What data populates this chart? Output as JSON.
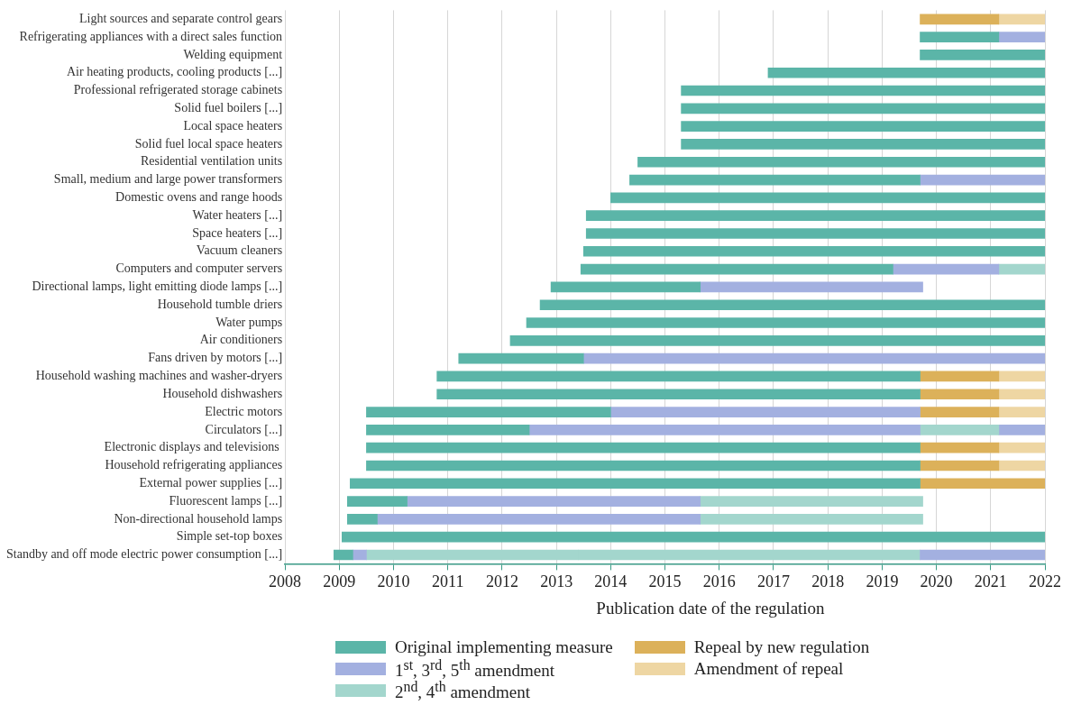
{
  "chart_data": {
    "type": "bar",
    "orientation": "horizontal",
    "xlabel": "Publication date of the regulation",
    "categories": [
      "Light sources and separate control gears",
      "Refrigerating appliances with a direct sales function",
      "Welding equipment",
      "Air heating products, cooling products [...]",
      "Professional refrigerated storage cabinets",
      "Solid fuel boilers [...]",
      "Local space heaters",
      "Solid fuel local space heaters",
      "Residential ventilation units",
      "Small, medium and large power transformers",
      "Domestic ovens and range hoods",
      "Water heaters [...]",
      "Space heaters [...]",
      "Vacuum cleaners",
      "Computers and computer servers",
      "Directional lamps, light emitting diode lamps [...]",
      "Household tumble driers",
      "Water pumps",
      "Air conditioners",
      "Fans driven by motors [...]",
      "Household washing machines and washer-dryers",
      "Household dishwashers",
      "Electric motors",
      "Circulators [...]",
      "Electronic displays and televisions ",
      "Household refrigerating appliances",
      "External power supplies [...]",
      "Fluorescent lamps [...]",
      "Non-directional household lamps",
      "Simple set-top boxes",
      "Standby and off mode electric power consumption [...]"
    ],
    "series": [
      {
        "name": "Original implementing measure",
        "color": "#5bb5a8",
        "base": [
          null,
          2019.7,
          2019.7,
          2016.9,
          2015.3,
          2015.3,
          2015.3,
          2015.3,
          2014.5,
          2014.35,
          2014,
          2013.55,
          2013.55,
          2013.5,
          2013.45,
          2012.9,
          2012.7,
          2012.45,
          2012.15,
          2011.2,
          2010.8,
          2010.8,
          2009.5,
          2009.5,
          2009.5,
          2009.5,
          2009.2,
          2009.15,
          2009.15,
          2009.05,
          2008.9
        ],
        "values": [
          null,
          1.45,
          2.3,
          5.1,
          6.7,
          6.7,
          6.7,
          6.7,
          7.5,
          5.35,
          8,
          8.45,
          8.45,
          8.5,
          5.75,
          2.75,
          9.3,
          9.55,
          9.85,
          2.3,
          8.9,
          8.9,
          4.5,
          3,
          10.2,
          10.2,
          10.5,
          1.1,
          0.55,
          12.95,
          0.35
        ]
      },
      {
        "name": "1$^{st}$, 3$^{rd}$, 5$^{th}$ amendment",
        "color": "#a3b0e0",
        "base": [
          null,
          2021.15,
          null,
          null,
          null,
          null,
          null,
          null,
          null,
          2019.7,
          null,
          null,
          null,
          null,
          2019.2,
          2015.65,
          null,
          null,
          null,
          2013.5,
          null,
          null,
          2014,
          2012.5,
          null,
          null,
          null,
          2010.25,
          2009.7,
          null,
          2009.25
        ],
        "values": [
          null,
          0.85,
          null,
          null,
          null,
          null,
          null,
          null,
          null,
          2.3,
          null,
          null,
          null,
          null,
          1.95,
          4.1,
          null,
          null,
          null,
          8.5,
          null,
          null,
          5.7,
          7.2,
          null,
          null,
          null,
          5.4,
          5.95,
          null,
          0.25
        ]
      },
      {
        "name": "2$^{nd}$, 4$^{th}$ amendment",
        "color": "#a3d6cd",
        "base": [
          null,
          null,
          null,
          null,
          null,
          null,
          null,
          null,
          null,
          null,
          null,
          null,
          null,
          null,
          2021.15,
          null,
          null,
          null,
          null,
          null,
          null,
          null,
          null,
          2019.7,
          null,
          null,
          null,
          2015.65,
          2015.65,
          null,
          2009.5
        ],
        "values": [
          null,
          null,
          null,
          null,
          null,
          null,
          null,
          null,
          null,
          null,
          null,
          null,
          null,
          null,
          0.85,
          null,
          null,
          null,
          null,
          null,
          null,
          null,
          null,
          1.45,
          null,
          null,
          null,
          4.1,
          4.1,
          null,
          3.9
        ]
      },
      {
        "name": "Repeal by new regulation",
        "color": "#dcb15a",
        "base": [
          2019.7,
          null,
          null,
          null,
          null,
          null,
          null,
          null,
          null,
          null,
          null,
          null,
          null,
          null,
          null,
          null,
          null,
          null,
          null,
          null,
          2019.7,
          2019.7,
          2019.7,
          null,
          2019.7,
          2019.7,
          2019.7,
          null,
          null,
          null,
          null
        ],
        "values": [
          1.45,
          null,
          null,
          null,
          null,
          null,
          null,
          null,
          null,
          null,
          null,
          null,
          null,
          null,
          null,
          null,
          null,
          null,
          null,
          null,
          1.45,
          1.45,
          1.45,
          null,
          1.45,
          1.45,
          2.3,
          null,
          null,
          null,
          null
        ]
      },
      {
        "name": "Amendment of repeal",
        "color": "#eed6a3",
        "base": [
          2021.15,
          null,
          null,
          null,
          null,
          null,
          null,
          null,
          null,
          null,
          null,
          null,
          null,
          null,
          null,
          null,
          null,
          null,
          null,
          null,
          2021.15,
          2021.15,
          2021.15,
          null,
          2021.15,
          2021.15,
          null,
          null,
          null,
          null,
          null
        ],
        "values": [
          0.85,
          null,
          null,
          null,
          null,
          null,
          null,
          null,
          null,
          null,
          null,
          null,
          null,
          null,
          null,
          null,
          null,
          null,
          null,
          null,
          0.85,
          0.85,
          0.85,
          null,
          0.85,
          0.85,
          null,
          null,
          null,
          null,
          null
        ]
      },
      {
        "color": "#a3b0e0",
        "base": [
          null,
          null,
          null,
          null,
          null,
          null,
          null,
          null,
          null,
          null,
          null,
          null,
          null,
          null,
          null,
          null,
          null,
          null,
          null,
          null,
          null,
          null,
          null,
          2021.15,
          null,
          null,
          null,
          null,
          null,
          null,
          2019.7
        ],
        "values": [
          null,
          null,
          null,
          null,
          null,
          null,
          null,
          null,
          null,
          null,
          null,
          null,
          null,
          null,
          null,
          null,
          null,
          null,
          null,
          null,
          null,
          null,
          null,
          0.85,
          null,
          null,
          null,
          null,
          null,
          null,
          2.3
        ]
      },
      {
        "color": "#a3d6cd",
        "base": [
          null,
          null,
          null,
          null,
          null,
          null,
          null,
          null,
          null,
          null,
          null,
          null,
          null,
          null,
          null,
          null,
          null,
          null,
          null,
          null,
          null,
          null,
          null,
          null,
          null,
          null,
          null,
          null,
          null,
          null,
          2013.4
        ],
        "values": [
          null,
          null,
          null,
          null,
          null,
          null,
          null,
          null,
          null,
          null,
          null,
          null,
          null,
          null,
          null,
          null,
          null,
          null,
          null,
          null,
          null,
          null,
          null,
          null,
          null,
          null,
          null,
          null,
          null,
          null,
          6.3
        ]
      }
    ],
    "xlim": [
      2008,
      2022
    ],
    "xticks": [
      2008,
      2009,
      2010,
      2011,
      2012,
      2013,
      2014,
      2015,
      2016,
      2017,
      2018,
      2019,
      2020,
      2021,
      2022
    ],
    "grid": "x",
    "legend": "bottom"
  }
}
